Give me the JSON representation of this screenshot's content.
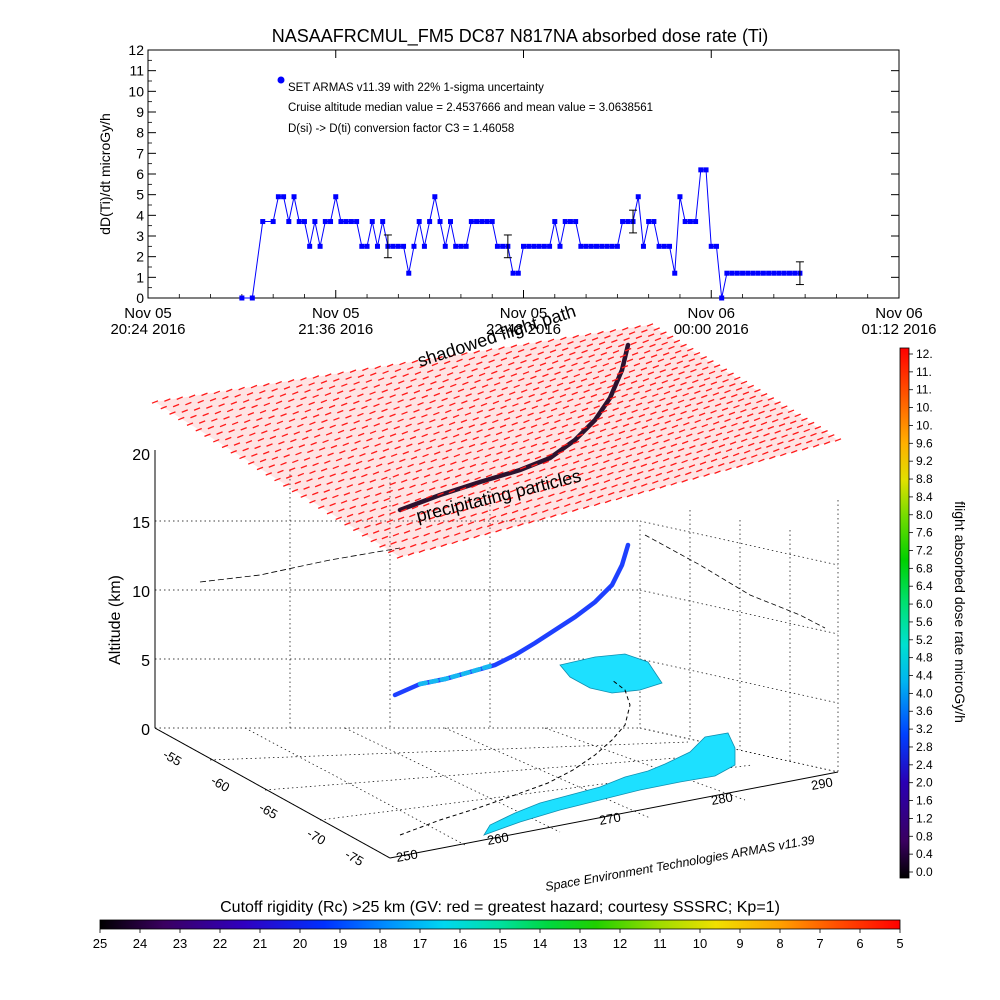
{
  "chart_data": [
    {
      "type": "line",
      "title": "NASAAFRCMUL_FM5 DC87 N817NA absorbed dose rate (Ti)",
      "ylabel": "dD(Ti)/dt microGy/h",
      "ylim": [
        0,
        12
      ],
      "yticks": [
        "0",
        "1",
        "2",
        "3",
        "4",
        "5",
        "6",
        "7",
        "8",
        "9",
        "10",
        "11",
        "12"
      ],
      "xticks": [
        {
          "line1": "Nov 05",
          "line2": "20:24 2016"
        },
        {
          "line1": "Nov 05",
          "line2": "21:36 2016"
        },
        {
          "line1": "Nov 05",
          "line2": "22:48 2016"
        },
        {
          "line1": "Nov 06",
          "line2": "00:00 2016"
        },
        {
          "line1": "Nov 06",
          "line2": "01:12 2016"
        }
      ],
      "x_unit": "minutes after Nov 05 20:24",
      "xlim": [
        0,
        288
      ],
      "annotations": [
        "SET ARMAS v11.39 with 22% 1-sigma uncertainty",
        "Cruise altitude median value = 2.4537666 and mean value = 3.0638561",
        "D(si) -> D(ti) conversion factor C3 = 1.46058"
      ],
      "series_color": "#0000ff",
      "series": [
        {
          "x": [
            36,
            40,
            44,
            48,
            50,
            52,
            54,
            56,
            58,
            60,
            62,
            64,
            66,
            68,
            70,
            72,
            74,
            76,
            78,
            80,
            82,
            84,
            86,
            88,
            90,
            92,
            94,
            96,
            98,
            100,
            102,
            104,
            106,
            108,
            110,
            112,
            114,
            116,
            118,
            120,
            122,
            124,
            126,
            128,
            130,
            132,
            134,
            136,
            138,
            140,
            142,
            144,
            146,
            148,
            150,
            152,
            154,
            156,
            158,
            160,
            162,
            164,
            166,
            168,
            170,
            172,
            174,
            176,
            178,
            180,
            182,
            184,
            186,
            188,
            190,
            192,
            194,
            196,
            198,
            200,
            202,
            204,
            206,
            208,
            210,
            212,
            214,
            216,
            218,
            220,
            222,
            224,
            226,
            228,
            230,
            232,
            234,
            236,
            238,
            240,
            242,
            244,
            246,
            248,
            250
          ],
          "y": [
            0,
            0,
            3.7,
            3.7,
            4.9,
            4.9,
            3.7,
            4.9,
            3.7,
            3.7,
            2.5,
            3.7,
            2.5,
            3.7,
            3.7,
            4.9,
            3.7,
            3.7,
            3.7,
            3.7,
            2.5,
            2.5,
            3.7,
            2.5,
            3.7,
            2.5,
            2.5,
            2.5,
            2.5,
            1.2,
            2.5,
            3.7,
            2.5,
            3.7,
            4.9,
            3.7,
            2.5,
            3.7,
            2.5,
            2.5,
            2.5,
            3.7,
            3.7,
            3.7,
            3.7,
            3.7,
            2.5,
            2.5,
            2.5,
            1.2,
            1.2,
            2.5,
            2.5,
            2.5,
            2.5,
            2.5,
            2.5,
            3.7,
            2.5,
            3.7,
            3.7,
            3.7,
            2.5,
            2.5,
            2.5,
            2.5,
            2.5,
            2.5,
            2.5,
            2.5,
            3.7,
            3.7,
            3.7,
            4.9,
            2.5,
            3.7,
            3.7,
            2.5,
            2.5,
            2.5,
            1.2,
            4.9,
            3.7,
            3.7,
            3.7,
            6.2,
            6.2,
            2.5,
            2.5,
            0,
            1.2,
            1.2,
            1.2,
            1.2,
            1.2,
            1.2,
            1.2,
            1.2,
            1.2,
            1.2,
            1.2,
            1.2,
            1.2,
            1.2,
            1.2
          ]
        }
      ],
      "error_bars_at": [
        92,
        138,
        186,
        250
      ],
      "error_bar_half": 0.55
    },
    {
      "type": "scatter",
      "subtype": "3d-flight-track",
      "zlabel": "Altitude (km)",
      "zticks": [
        "0",
        "5",
        "10",
        "15",
        "20"
      ],
      "lat_ticks": [
        "-55",
        "-60",
        "-65",
        "-70",
        "-75"
      ],
      "lon_ticks": [
        "250",
        "260",
        "270",
        "280",
        "290"
      ],
      "plane_labels": [
        "shadowed flight path",
        "precipitating particles"
      ],
      "credit": "Space Environment Technologies ARMAS v11.39",
      "colorbar": {
        "label": "flight absorbed dose rate microGy/h",
        "ticks": [
          "12.",
          "11.",
          "11.",
          "10.",
          "10.",
          "9.6",
          "9.2",
          "8.8",
          "8.4",
          "8.0",
          "7.6",
          "7.2",
          "6.8",
          "6.4",
          "6.0",
          "5.6",
          "5.2",
          "4.8",
          "4.4",
          "4.0",
          "3.6",
          "3.2",
          "2.8",
          "2.4",
          "2.0",
          "1.6",
          "1.2",
          "0.8",
          "0.4",
          "0.0"
        ]
      }
    },
    {
      "type": "heatmap",
      "subtype": "horizontal-colorbar",
      "title": "Cutoff rigidity (Rc) >25 km (GV: red = greatest hazard; courtesy SSSRC; Kp=1)",
      "ticks": [
        "25",
        "24",
        "23",
        "22",
        "21",
        "20",
        "19",
        "18",
        "17",
        "16",
        "15",
        "14",
        "13",
        "12",
        "11",
        "10",
        "9",
        "8",
        "7",
        "6",
        "5"
      ]
    }
  ]
}
